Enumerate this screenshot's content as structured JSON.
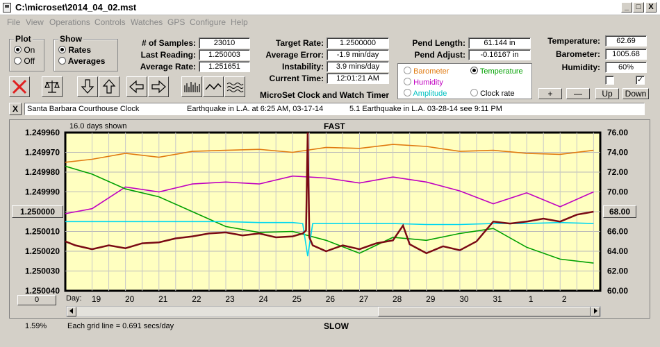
{
  "window": {
    "title": "C:\\microset\\2014_04_02.mst",
    "min": "_",
    "max": "□",
    "close": "X"
  },
  "menu": [
    "File",
    "View",
    "Operations",
    "Controls",
    "Watches",
    "GPS",
    "Configure",
    "Help"
  ],
  "plot_group": {
    "title": "Plot",
    "on": "On",
    "off": "Off",
    "selected": "On"
  },
  "show_group": {
    "title": "Show",
    "rates": "Rates",
    "averages": "Averages",
    "selected": "Rates"
  },
  "stats": {
    "samples_label": "# of Samples:",
    "samples": "23010",
    "last_label": "Last Reading:",
    "last": "1.250003",
    "avg_rate_label": "Average Rate:",
    "avg_rate": "1.251651",
    "target_label": "Target Rate:",
    "target": "1.2500000",
    "avg_err_label": "Average Error:",
    "avg_err": "-1.9 min/day",
    "instab_label": "Instability:",
    "instab": "3.9 mins/day",
    "time_label": "Current Time:",
    "time": "12:01:21 AM",
    "pend_len_label": "Pend Length:",
    "pend_len": "61.144 in",
    "pend_adj_label": "Pend Adjust:",
    "pend_adj": "-0.16167 in",
    "temp_label": "Temperature:",
    "temp": "62.69",
    "baro_label": "Barometer:",
    "baro": "1005.68",
    "hum_label": "Humidity:",
    "hum": "60%"
  },
  "app_caption": "MicroSet Clock and Watch Timer",
  "sensor_select": {
    "barometer": "Barometer",
    "temperature": "Temperature",
    "humidity": "Humidity",
    "amplitude": "Amplitude",
    "clock_rate": "Clock rate",
    "selected": "Temperature",
    "colors": {
      "barometer": "#e07a10",
      "temperature": "#00a000",
      "humidity": "#c000c0",
      "amplitude": "#00c0c0",
      "clock_rate": "#000000"
    }
  },
  "buttons": {
    "plus": "+",
    "minus": "—",
    "up": "Up",
    "down": "Down"
  },
  "checks": {
    "left": false,
    "right": true,
    "right_mark": "✓"
  },
  "infobar": {
    "clock": "Santa Barbara Courthouse Clock",
    "note1": "Earthquake in L.A. at 6:25 AM, 03-17-14",
    "note2": "5.1 Earthquake in L.A. 03-28-14  see 9:11 PM",
    "close": "X"
  },
  "plot": {
    "days_shown": "16.0 days shown",
    "fast": "FAST",
    "slow": "SLOW",
    "day_prefix": "Day:",
    "grid_note": "Each grid line = 0.691 secs/day",
    "percent": "1.59%",
    "left_box": "1.250000",
    "right_box": "68.00",
    "zero_box": "0"
  },
  "chart_data": {
    "type": "line",
    "x_label": "Day",
    "x_ticks": [
      "19",
      "20",
      "21",
      "22",
      "23",
      "24",
      "25",
      "26",
      "27",
      "28",
      "29",
      "30",
      "31",
      "1",
      "2"
    ],
    "x_range": [
      18.2,
      34.2
    ],
    "y_left_ticks": [
      "1.249960",
      "1.249970",
      "1.249980",
      "1.249990",
      "1.250000",
      "1.250010",
      "1.250020",
      "1.250030",
      "1.250040"
    ],
    "y_left_range": [
      1.24996,
      1.25004
    ],
    "y_right_ticks": [
      "76.00",
      "74.00",
      "72.00",
      "70.00",
      "68.00",
      "66.00",
      "64.00",
      "62.00",
      "60.00"
    ],
    "y_right_range": [
      60,
      76
    ],
    "grid": true,
    "series": [
      {
        "color": "#e07a10",
        "x": [
          18.2,
          19,
          20,
          21,
          22,
          23,
          24,
          25,
          26,
          27,
          28,
          29,
          30,
          31,
          32,
          33,
          34
        ],
        "y": [
          73.0,
          73.3,
          73.9,
          73.5,
          74.1,
          74.2,
          74.3,
          74.0,
          74.5,
          74.4,
          74.8,
          74.6,
          74.1,
          74.2,
          73.9,
          73.8,
          74.2
        ]
      },
      {
        "color": "#c000c0",
        "x": [
          18.2,
          19,
          20,
          21,
          22,
          23,
          24,
          25,
          26,
          27,
          28,
          29,
          30,
          31,
          32,
          33,
          34
        ],
        "y": [
          67.8,
          68.3,
          70.5,
          70.0,
          70.8,
          71.0,
          70.8,
          71.6,
          71.4,
          70.9,
          71.5,
          71.0,
          70.1,
          68.8,
          69.9,
          68.5,
          70.0
        ]
      },
      {
        "color": "#00a000",
        "x": [
          18.2,
          19,
          20,
          21,
          22,
          23,
          24,
          25,
          26,
          27,
          28,
          29,
          30,
          31,
          32,
          33,
          34
        ],
        "y": [
          72.6,
          71.8,
          70.3,
          69.5,
          68.0,
          66.5,
          65.9,
          66.0,
          65.1,
          63.8,
          65.4,
          65.1,
          65.8,
          66.3,
          64.4,
          63.2,
          62.8
        ]
      },
      {
        "color": "#00d8f0",
        "x": [
          18.2,
          19,
          20,
          21,
          22,
          23,
          24,
          25,
          25.3,
          25.45,
          25.6,
          26,
          27,
          28,
          29,
          30,
          31,
          32,
          33,
          34
        ],
        "y": [
          67.0,
          67.0,
          67.0,
          67.0,
          67.0,
          67.0,
          66.9,
          66.9,
          66.8,
          63.5,
          66.8,
          66.8,
          66.8,
          66.8,
          66.7,
          66.7,
          66.8,
          66.8,
          66.9,
          66.8
        ]
      },
      {
        "color": "#7a0a14",
        "x": [
          18.2,
          18.5,
          19,
          19.5,
          20,
          20.5,
          21,
          21.5,
          22,
          22.5,
          23,
          23.5,
          24,
          24.5,
          25,
          25.3,
          25.4,
          25.45,
          25.5,
          25.6,
          26,
          26.5,
          27,
          27.5,
          28,
          28.3,
          28.5,
          29,
          29.5,
          30,
          30.5,
          31,
          31.5,
          32,
          32.5,
          33,
          33.5,
          34
        ],
        "y": [
          65.0,
          64.6,
          64.2,
          64.6,
          64.3,
          64.8,
          64.9,
          65.3,
          65.5,
          65.8,
          65.9,
          65.6,
          65.8,
          65.4,
          65.5,
          65.8,
          66.1,
          76.0,
          65.4,
          64.6,
          64.0,
          64.6,
          64.2,
          64.8,
          65.1,
          66.6,
          64.7,
          63.8,
          64.5,
          64.1,
          65.0,
          67.0,
          66.8,
          67.0,
          67.3,
          67.0,
          67.7,
          68.0
        ]
      }
    ]
  }
}
